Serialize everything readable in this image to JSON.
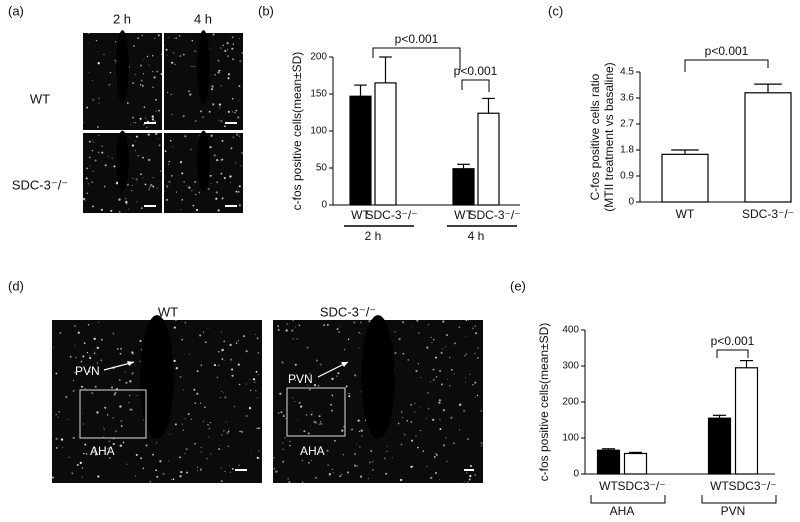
{
  "panels": {
    "a": {
      "label": "(a)",
      "columns": [
        "2 h",
        "4 h"
      ],
      "rows": [
        "WT",
        "SDC-3⁻/⁻"
      ]
    },
    "d": {
      "label": "(d)",
      "columns": [
        "WT",
        "SDC-3⁻/⁻"
      ],
      "regions": [
        "PVN",
        "AHA"
      ]
    }
  },
  "chart_data": [
    {
      "type": "bar",
      "label": "(b)",
      "y_label": [
        "c-fos positive cells(mean±SD)"
      ],
      "categories": [
        "2 h",
        "4 h"
      ],
      "series": [
        {
          "name": "WT",
          "color": "#000000",
          "values": [
            147,
            49
          ],
          "errors": [
            15,
            6
          ]
        },
        {
          "name": "SDC-3⁻/⁻",
          "color": "#ffffff",
          "values": [
            165,
            124
          ],
          "errors": [
            35,
            20
          ]
        }
      ],
      "ylim": [
        0,
        200
      ],
      "yticks": [
        0,
        50,
        100,
        150,
        200
      ],
      "annotations": [
        "p<0.001",
        "p<0.001"
      ]
    },
    {
      "type": "bar",
      "label": "(c)",
      "y_label": [
        "C-fos positive cells ratio",
        "(MTII treatment vs basaline)"
      ],
      "categories": [
        "WT",
        "SDC-3⁻/⁻"
      ],
      "values": [
        1.65,
        3.78
      ],
      "errors": [
        0.15,
        0.3
      ],
      "color": "#ffffff",
      "ylim": [
        0,
        4.5
      ],
      "yticks": [
        0,
        0.9,
        1.8,
        2.7,
        3.6,
        4.5
      ],
      "annotations": [
        "p<0.001"
      ]
    },
    {
      "type": "bar",
      "label": "(e)",
      "y_label": [
        "c-fos positive cells(mean±SD)"
      ],
      "categories": [
        "AHA",
        "PVN"
      ],
      "series": [
        {
          "name": "WT",
          "color": "#000000",
          "values": [
            66,
            155
          ],
          "errors": [
            4,
            8
          ]
        },
        {
          "name": "SDC3⁻/⁻",
          "color": "#ffffff",
          "values": [
            57,
            295
          ],
          "errors": [
            3,
            20
          ]
        }
      ],
      "ylim": [
        0,
        400
      ],
      "yticks": [
        0,
        100,
        200,
        300,
        400
      ],
      "annotations": [
        "p<0.001"
      ]
    }
  ]
}
